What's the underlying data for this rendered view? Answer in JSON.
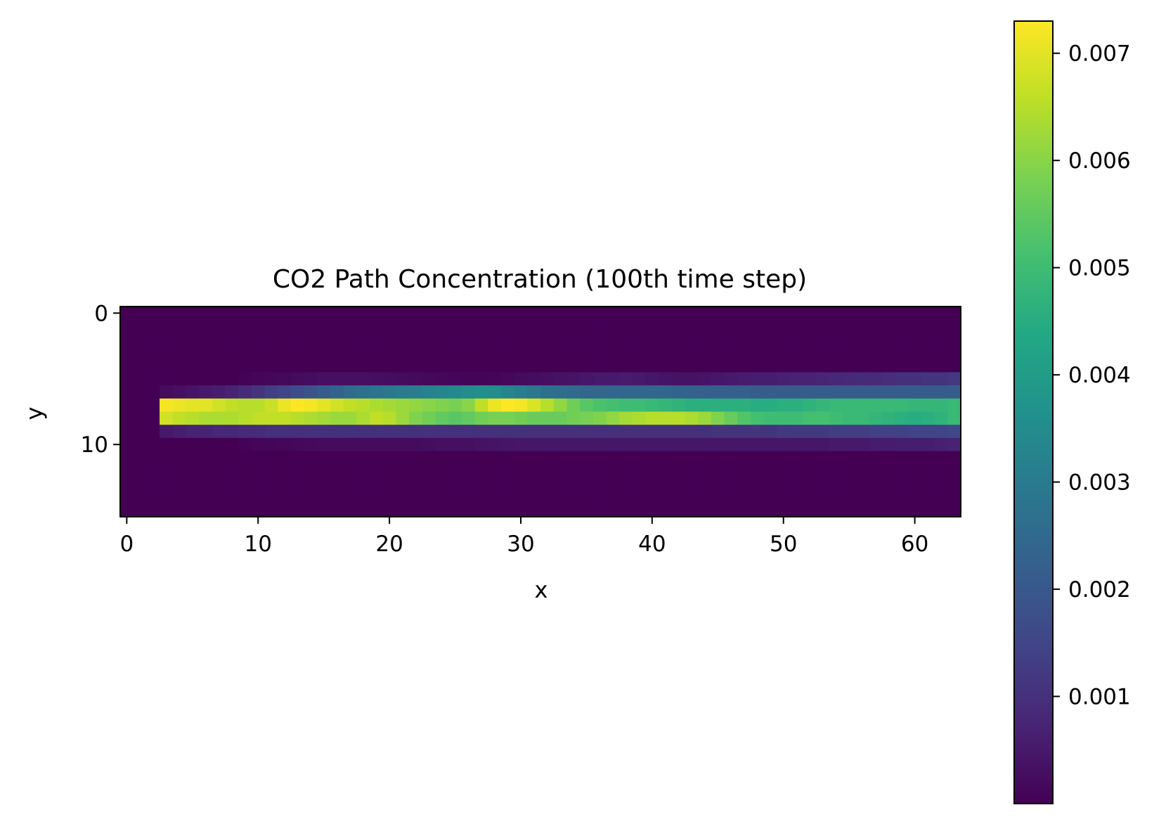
{
  "chart_data": {
    "type": "heatmap",
    "title": "CO2 Path Concentration (100th time step)",
    "xlabel": "x",
    "ylabel": "y",
    "grid": false,
    "colormap": "viridis",
    "xlim": [
      -0.5,
      63.5
    ],
    "ylim": [
      15.5,
      -0.5
    ],
    "x_ticks": [
      0,
      10,
      20,
      30,
      40,
      50,
      60
    ],
    "x_tick_labels": [
      "0",
      "10",
      "20",
      "30",
      "40",
      "50",
      "60"
    ],
    "y_ticks": [
      0,
      10
    ],
    "y_tick_labels": [
      "0",
      "10"
    ],
    "colorbar": {
      "min": 0.0,
      "max": 0.0073,
      "ticks": [
        0.001,
        0.002,
        0.003,
        0.004,
        0.005,
        0.006,
        0.007
      ],
      "tick_labels": [
        "0.001",
        "0.002",
        "0.003",
        "0.004",
        "0.005",
        "0.006",
        "0.007"
      ]
    },
    "grid_shape": [
      16,
      64
    ],
    "background_value": 0.0,
    "source_start_x": 3,
    "rows": [
      {
        "y": 5,
        "values": [
          0,
          0,
          0,
          0,
          0,
          0,
          0,
          0,
          0,
          5e-05,
          0.0001,
          0.00012,
          0.00015,
          0.0002,
          0.00025,
          0.0003,
          0.0003,
          0.0003,
          0.0003,
          0.00028,
          0.00025,
          0.00022,
          0.00018,
          0.00015,
          0.00012,
          0.0001,
          8e-05,
          8e-05,
          0.0001,
          0.00015,
          0.0002,
          0.00025,
          0.0003,
          0.00035,
          0.0004,
          0.00045,
          0.0005,
          0.0005,
          0.00055,
          0.0005,
          0.00045,
          0.0004,
          0.00035,
          0.00035,
          0.0004,
          0.00045,
          0.0005,
          0.00055,
          0.0006,
          0.0006,
          0.00065,
          0.0007,
          0.0007,
          0.00075,
          0.0008,
          0.00085,
          0.0009,
          0.0009,
          0.00095,
          0.001,
          0.001,
          0.0011,
          0.0011,
          0.0012
        ]
      },
      {
        "y": 6,
        "values": [
          0,
          0,
          0,
          0.0002,
          0.0003,
          0.0004,
          0.0005,
          0.0006,
          0.0007,
          0.0009,
          0.0011,
          0.0013,
          0.0015,
          0.0017,
          0.0019,
          0.0021,
          0.0023,
          0.0025,
          0.0027,
          0.0028,
          0.0029,
          0.003,
          0.0031,
          0.0032,
          0.0033,
          0.0034,
          0.0035,
          0.0036,
          0.0035,
          0.0033,
          0.0031,
          0.0029,
          0.0027,
          0.0026,
          0.0025,
          0.0024,
          0.0024,
          0.0024,
          0.0024,
          0.0024,
          0.0024,
          0.0024,
          0.0023,
          0.0023,
          0.0022,
          0.0022,
          0.0022,
          0.0022,
          0.0021,
          0.0021,
          0.0021,
          0.0021,
          0.0021,
          0.0021,
          0.0021,
          0.0021,
          0.0021,
          0.0021,
          0.0021,
          0.0021,
          0.0021,
          0.0021,
          0.0021,
          0.0021
        ]
      },
      {
        "y": 7,
        "values": [
          0,
          0,
          0,
          0.0072,
          0.0071,
          0.007,
          0.007,
          0.0068,
          0.0066,
          0.0065,
          0.0065,
          0.0067,
          0.0071,
          0.0073,
          0.0072,
          0.007,
          0.0068,
          0.0066,
          0.0065,
          0.0064,
          0.0063,
          0.0062,
          0.0061,
          0.006,
          0.0059,
          0.0058,
          0.006,
          0.0066,
          0.0071,
          0.0073,
          0.0072,
          0.0069,
          0.0065,
          0.0061,
          0.0057,
          0.0054,
          0.0052,
          0.0051,
          0.005,
          0.005,
          0.0049,
          0.0048,
          0.0047,
          0.0046,
          0.0046,
          0.0046,
          0.0046,
          0.0046,
          0.0045,
          0.0045,
          0.0046,
          0.0046,
          0.0047,
          0.0048,
          0.0049,
          0.0049,
          0.0049,
          0.0049,
          0.0049,
          0.0049,
          0.0048,
          0.0048,
          0.0048,
          0.0049
        ]
      },
      {
        "y": 8,
        "values": [
          0,
          0,
          0,
          0.0068,
          0.0066,
          0.0065,
          0.0064,
          0.0064,
          0.0064,
          0.0065,
          0.0066,
          0.0066,
          0.0066,
          0.0065,
          0.0064,
          0.0063,
          0.0062,
          0.0062,
          0.0064,
          0.0066,
          0.0065,
          0.0062,
          0.0059,
          0.0057,
          0.0055,
          0.0054,
          0.0055,
          0.0057,
          0.0058,
          0.0058,
          0.0057,
          0.0056,
          0.0056,
          0.0056,
          0.0057,
          0.0058,
          0.0059,
          0.0061,
          0.0063,
          0.0064,
          0.0065,
          0.0065,
          0.0065,
          0.0064,
          0.0062,
          0.0059,
          0.0056,
          0.0053,
          0.0051,
          0.005,
          0.005,
          0.005,
          0.0051,
          0.0051,
          0.005,
          0.0049,
          0.0049,
          0.0048,
          0.0047,
          0.0046,
          0.0045,
          0.0046,
          0.0047,
          0.0049
        ]
      },
      {
        "y": 9,
        "values": [
          0,
          0,
          0,
          0.0005,
          0.0006,
          0.0007,
          0.0007,
          0.0008,
          0.0008,
          0.0009,
          0.0009,
          0.001,
          0.001,
          0.001,
          0.001,
          0.001,
          0.001,
          0.001,
          0.001,
          0.001,
          0.001,
          0.001,
          0.001,
          0.001,
          0.001,
          0.001,
          0.001,
          0.001,
          0.001,
          0.001,
          0.001,
          0.001,
          0.001,
          0.001,
          0.001,
          0.001,
          0.001,
          0.001,
          0.001,
          0.001,
          0.001,
          0.001,
          0.001,
          0.001,
          0.001,
          0.0011,
          0.0011,
          0.0011,
          0.0011,
          0.0011,
          0.0012,
          0.0012,
          0.0012,
          0.0012,
          0.0013,
          0.0013,
          0.0013,
          0.0014,
          0.0014,
          0.0014,
          0.0015,
          0.0015,
          0.0015,
          0.0016
        ]
      },
      {
        "y": 10,
        "values": [
          0,
          0,
          0,
          0,
          0,
          0,
          0,
          0,
          0,
          5e-05,
          0.0001,
          0.0001,
          0.00012,
          0.00015,
          0.00018,
          0.0002,
          0.0002,
          0.0002,
          0.0002,
          0.0002,
          0.0002,
          0.0002,
          0.00022,
          0.00025,
          0.0003,
          0.0003,
          0.00032,
          0.00035,
          0.0004,
          0.00042,
          0.00045,
          0.00045,
          0.00045,
          0.00045,
          0.00045,
          0.00045,
          0.00045,
          0.00045,
          0.00045,
          0.00045,
          0.00045,
          0.00045,
          0.00045,
          0.00045,
          0.00045,
          0.00045,
          0.00045,
          0.00045,
          0.00045,
          0.00045,
          0.00045,
          0.00045,
          0.00045,
          0.00045,
          0.0005,
          0.0005,
          0.0005,
          0.00055,
          0.00055,
          0.0006,
          0.0006,
          0.0006,
          0.00065,
          0.0007
        ]
      }
    ]
  }
}
